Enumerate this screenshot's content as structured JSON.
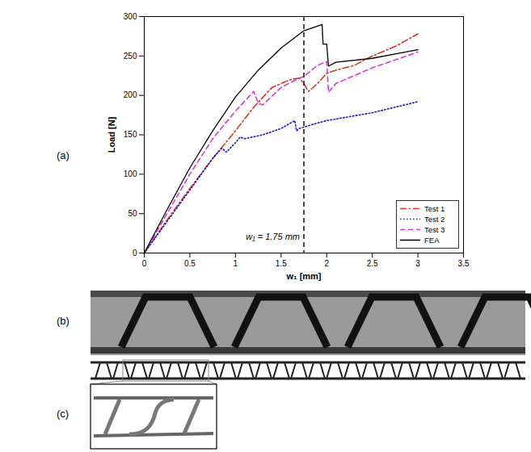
{
  "panel_labels": [
    "(a)",
    "(b)",
    "(c)"
  ],
  "chart_data": {
    "type": "line",
    "x_label": "w₁ [mm]",
    "y_label": "Load [N]",
    "xlim": [
      0,
      3.5
    ],
    "xticks": [
      0,
      0.5,
      1,
      1.5,
      2,
      2.5,
      3,
      3.5
    ],
    "ylim": [
      0,
      300
    ],
    "yticks": [
      0,
      50,
      100,
      150,
      200,
      250,
      300
    ],
    "legend": "lower right",
    "annotations": [
      {
        "x": 1.75,
        "text": "w₁ = 1.75 mm",
        "line_style": "dashed",
        "color": "#000000"
      }
    ],
    "series": [
      {
        "name": "Test 1",
        "color": "#d9381e",
        "line_style": "dashdot",
        "x": [
          0,
          0.25,
          0.5,
          0.75,
          1,
          1.2,
          1.4,
          1.6,
          1.7,
          1.75,
          1.8,
          1.9,
          2.0,
          2.1,
          2.3,
          2.5,
          2.75,
          3
        ],
        "values": [
          0,
          42,
          82,
          120,
          155,
          185,
          210,
          220,
          222,
          215,
          205,
          215,
          228,
          232,
          238,
          250,
          262,
          278
        ]
      },
      {
        "name": "Test 2",
        "color": "#1a1acc",
        "line_style": "dotted",
        "x": [
          0,
          0.25,
          0.5,
          0.75,
          0.85,
          0.9,
          1.0,
          1.05,
          1.1,
          1.3,
          1.5,
          1.65,
          1.67,
          1.7,
          1.9,
          2.0,
          2.5,
          3
        ],
        "values": [
          0,
          40,
          80,
          120,
          133,
          128,
          140,
          147,
          145,
          150,
          158,
          168,
          155,
          158,
          165,
          168,
          178,
          192
        ]
      },
      {
        "name": "Test 3",
        "color": "#d63ad6",
        "line_style": "dashed",
        "x": [
          0,
          0.25,
          0.5,
          0.75,
          1.0,
          1.2,
          1.25,
          1.3,
          1.5,
          1.7,
          1.75,
          1.9,
          2.0,
          2.02,
          2.1,
          2.5,
          3
        ],
        "values": [
          0,
          50,
          100,
          145,
          180,
          205,
          190,
          188,
          210,
          222,
          224,
          238,
          243,
          204,
          215,
          235,
          255
        ]
      },
      {
        "name": "FEA",
        "color": "#000000",
        "line_style": "solid",
        "x": [
          0,
          0.25,
          0.5,
          0.75,
          1,
          1.25,
          1.5,
          1.75,
          1.95,
          1.96,
          2.0,
          2.02,
          2.1,
          2.5,
          3
        ],
        "values": [
          0,
          55,
          108,
          155,
          198,
          232,
          260,
          282,
          290,
          265,
          265,
          237,
          242,
          247,
          258
        ]
      }
    ]
  }
}
